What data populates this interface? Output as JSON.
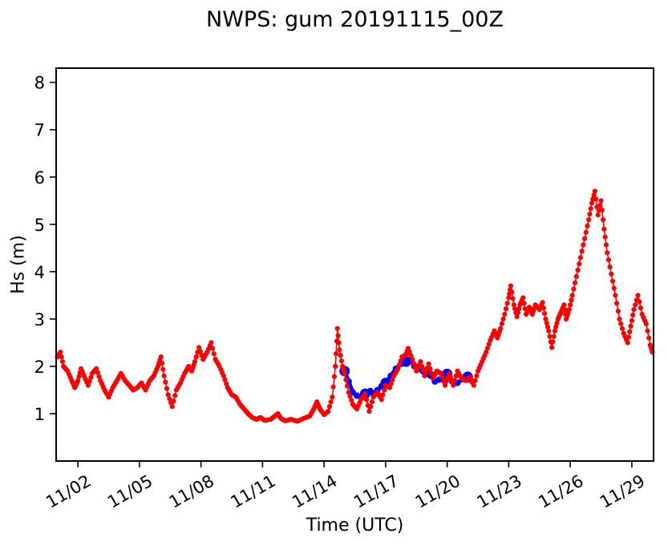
{
  "chart_data": {
    "type": "line",
    "title": "NWPS: gum 20191115_00Z",
    "xlabel": "Time (UTC)",
    "ylabel": "Hs (m)",
    "x_unit": "day of November 2019 (UTC)",
    "xlim": [
      0.94,
      30.06
    ],
    "ylim": [
      0,
      8.3
    ],
    "grid": false,
    "legend_position": "none",
    "yticks": {
      "values": [
        1,
        2,
        3,
        4,
        5,
        6,
        7,
        8
      ],
      "labels": [
        "1",
        "2",
        "3",
        "4",
        "5",
        "6",
        "7",
        "8"
      ]
    },
    "xticks": {
      "values": [
        2,
        5,
        8,
        11,
        14,
        17,
        20,
        23,
        26,
        29
      ],
      "labels": [
        "11/02",
        "11/05",
        "11/08",
        "11/11",
        "11/14",
        "11/17",
        "11/20",
        "11/23",
        "11/26",
        "11/29"
      ],
      "rotation_deg": 30
    },
    "series": [
      {
        "name": "blue-model-forecast",
        "color": "#0000ff",
        "style": "thick line with round markers",
        "line_width": 5,
        "marker_radius": 6.5,
        "marker_days": [
          15,
          16,
          17,
          18,
          19,
          20,
          21
        ],
        "points": [
          [
            15.0,
            1.9
          ],
          [
            15.2,
            1.68
          ],
          [
            15.4,
            1.45
          ],
          [
            15.6,
            1.38
          ],
          [
            15.8,
            1.35
          ],
          [
            16.0,
            1.42
          ],
          [
            16.25,
            1.48
          ],
          [
            16.4,
            1.42
          ],
          [
            16.6,
            1.5
          ],
          [
            16.8,
            1.58
          ],
          [
            17.0,
            1.65
          ],
          [
            17.25,
            1.8
          ],
          [
            17.5,
            1.95
          ],
          [
            17.75,
            2.05
          ],
          [
            18.0,
            2.1
          ],
          [
            18.2,
            2.15
          ],
          [
            18.4,
            2.0
          ],
          [
            18.6,
            1.95
          ],
          [
            18.8,
            1.9
          ],
          [
            19.0,
            1.88
          ],
          [
            19.2,
            1.8
          ],
          [
            19.4,
            1.68
          ],
          [
            19.6,
            1.72
          ],
          [
            19.8,
            1.78
          ],
          [
            20.0,
            1.84
          ],
          [
            20.25,
            1.68
          ],
          [
            20.5,
            1.65
          ],
          [
            20.75,
            1.73
          ],
          [
            21.0,
            1.78
          ],
          [
            21.1,
            1.72
          ]
        ]
      },
      {
        "name": "red-dotted-observations",
        "color": "#ff0000",
        "style": "dense dot markers with thin connecting line",
        "line_width": 1.6,
        "marker_radius": 3.1,
        "points": [
          [
            1.0,
            2.2
          ],
          [
            1.15,
            2.3
          ],
          [
            1.3,
            2.0
          ],
          [
            1.5,
            1.9
          ],
          [
            1.7,
            1.7
          ],
          [
            1.85,
            1.55
          ],
          [
            2.0,
            1.7
          ],
          [
            2.15,
            1.95
          ],
          [
            2.3,
            1.8
          ],
          [
            2.5,
            1.6
          ],
          [
            2.7,
            1.85
          ],
          [
            2.9,
            1.95
          ],
          [
            3.1,
            1.7
          ],
          [
            3.3,
            1.5
          ],
          [
            3.5,
            1.35
          ],
          [
            3.7,
            1.55
          ],
          [
            3.9,
            1.7
          ],
          [
            4.1,
            1.85
          ],
          [
            4.3,
            1.7
          ],
          [
            4.5,
            1.6
          ],
          [
            4.7,
            1.5
          ],
          [
            4.9,
            1.55
          ],
          [
            5.1,
            1.65
          ],
          [
            5.3,
            1.5
          ],
          [
            5.5,
            1.7
          ],
          [
            5.7,
            1.8
          ],
          [
            5.9,
            2.0
          ],
          [
            6.05,
            2.2
          ],
          [
            6.2,
            1.8
          ],
          [
            6.4,
            1.4
          ],
          [
            6.6,
            1.15
          ],
          [
            6.8,
            1.5
          ],
          [
            7.0,
            1.65
          ],
          [
            7.2,
            1.85
          ],
          [
            7.4,
            2.0
          ],
          [
            7.55,
            1.9
          ],
          [
            7.7,
            2.1
          ],
          [
            7.9,
            2.4
          ],
          [
            8.1,
            2.15
          ],
          [
            8.3,
            2.3
          ],
          [
            8.5,
            2.5
          ],
          [
            8.7,
            2.15
          ],
          [
            8.9,
            2.0
          ],
          [
            9.1,
            1.8
          ],
          [
            9.3,
            1.55
          ],
          [
            9.5,
            1.4
          ],
          [
            9.7,
            1.35
          ],
          [
            9.9,
            1.2
          ],
          [
            10.1,
            1.1
          ],
          [
            10.3,
            1.0
          ],
          [
            10.5,
            0.92
          ],
          [
            10.7,
            0.88
          ],
          [
            10.9,
            0.92
          ],
          [
            11.1,
            0.86
          ],
          [
            11.4,
            0.88
          ],
          [
            11.6,
            0.95
          ],
          [
            11.75,
            1.0
          ],
          [
            11.9,
            0.9
          ],
          [
            12.1,
            0.85
          ],
          [
            12.4,
            0.88
          ],
          [
            12.7,
            0.84
          ],
          [
            13.0,
            0.9
          ],
          [
            13.3,
            0.95
          ],
          [
            13.5,
            1.1
          ],
          [
            13.65,
            1.25
          ],
          [
            13.8,
            1.1
          ],
          [
            14.0,
            0.98
          ],
          [
            14.2,
            1.05
          ],
          [
            14.4,
            1.35
          ],
          [
            14.55,
            2.0
          ],
          [
            14.65,
            2.8
          ],
          [
            14.75,
            2.35
          ],
          [
            14.9,
            2.0
          ],
          [
            15.0,
            1.85
          ],
          [
            15.2,
            1.45
          ],
          [
            15.4,
            1.2
          ],
          [
            15.6,
            1.1
          ],
          [
            15.8,
            1.3
          ],
          [
            16.0,
            1.42
          ],
          [
            16.2,
            1.05
          ],
          [
            16.4,
            1.35
          ],
          [
            16.6,
            1.45
          ],
          [
            16.8,
            1.3
          ],
          [
            17.0,
            1.6
          ],
          [
            17.2,
            1.55
          ],
          [
            17.4,
            1.8
          ],
          [
            17.6,
            1.95
          ],
          [
            17.8,
            2.2
          ],
          [
            18.0,
            2.25
          ],
          [
            18.1,
            2.38
          ],
          [
            18.3,
            2.15
          ],
          [
            18.5,
            1.9
          ],
          [
            18.7,
            2.1
          ],
          [
            18.9,
            1.8
          ],
          [
            19.1,
            2.05
          ],
          [
            19.3,
            1.75
          ],
          [
            19.5,
            1.9
          ],
          [
            19.7,
            1.85
          ],
          [
            19.9,
            1.6
          ],
          [
            20.1,
            1.85
          ],
          [
            20.3,
            1.6
          ],
          [
            20.5,
            1.9
          ],
          [
            20.7,
            1.75
          ],
          [
            20.9,
            1.7
          ],
          [
            21.1,
            1.77
          ],
          [
            21.3,
            1.6
          ],
          [
            21.5,
            1.9
          ],
          [
            21.7,
            2.1
          ],
          [
            21.9,
            2.3
          ],
          [
            22.1,
            2.55
          ],
          [
            22.3,
            2.75
          ],
          [
            22.45,
            2.6
          ],
          [
            22.6,
            2.8
          ],
          [
            22.8,
            3.1
          ],
          [
            23.0,
            3.45
          ],
          [
            23.1,
            3.7
          ],
          [
            23.25,
            3.3
          ],
          [
            23.4,
            3.05
          ],
          [
            23.55,
            3.3
          ],
          [
            23.7,
            3.45
          ],
          [
            23.85,
            3.1
          ],
          [
            24.0,
            3.25
          ],
          [
            24.15,
            3.1
          ],
          [
            24.3,
            3.3
          ],
          [
            24.5,
            3.2
          ],
          [
            24.65,
            3.35
          ],
          [
            24.8,
            3.0
          ],
          [
            24.95,
            2.75
          ],
          [
            25.1,
            2.4
          ],
          [
            25.25,
            2.75
          ],
          [
            25.4,
            3.0
          ],
          [
            25.55,
            3.15
          ],
          [
            25.7,
            3.3
          ],
          [
            25.8,
            3.0
          ],
          [
            25.95,
            3.2
          ],
          [
            26.1,
            3.5
          ],
          [
            26.3,
            3.9
          ],
          [
            26.5,
            4.3
          ],
          [
            26.7,
            4.7
          ],
          [
            26.9,
            5.1
          ],
          [
            27.05,
            5.45
          ],
          [
            27.2,
            5.7
          ],
          [
            27.35,
            5.2
          ],
          [
            27.5,
            5.5
          ],
          [
            27.65,
            4.9
          ],
          [
            27.8,
            4.4
          ],
          [
            28.0,
            3.95
          ],
          [
            28.2,
            3.5
          ],
          [
            28.4,
            3.0
          ],
          [
            28.6,
            2.7
          ],
          [
            28.8,
            2.5
          ],
          [
            28.95,
            2.85
          ],
          [
            29.1,
            3.2
          ],
          [
            29.3,
            3.5
          ],
          [
            29.5,
            3.1
          ],
          [
            29.7,
            2.9
          ],
          [
            29.9,
            2.45
          ],
          [
            30.0,
            2.3
          ]
        ]
      }
    ]
  }
}
